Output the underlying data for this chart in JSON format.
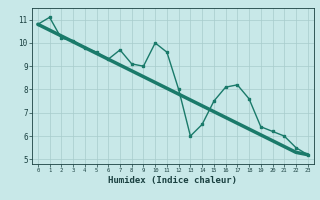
{
  "xlabel": "Humidex (Indice chaleur)",
  "x_values": [
    0,
    1,
    2,
    3,
    4,
    5,
    6,
    7,
    8,
    9,
    10,
    11,
    12,
    13,
    14,
    15,
    16,
    17,
    18,
    19,
    20,
    21,
    22,
    23
  ],
  "y_line1": [
    10.8,
    11.1,
    10.2,
    10.1,
    9.8,
    9.6,
    9.3,
    9.7,
    9.1,
    9.0,
    10.0,
    9.6,
    8.0,
    6.0,
    6.5,
    7.5,
    8.1,
    8.2,
    7.6,
    6.4,
    6.2,
    6.0,
    5.5,
    5.2
  ],
  "y_trend": [
    10.8,
    10.55,
    10.3,
    10.05,
    9.8,
    9.55,
    9.3,
    9.05,
    8.8,
    8.55,
    8.3,
    8.05,
    7.8,
    7.55,
    7.3,
    7.05,
    6.8,
    6.55,
    6.3,
    6.05,
    5.8,
    5.55,
    5.3,
    5.2
  ],
  "ylim": [
    4.8,
    11.5
  ],
  "xlim": [
    -0.5,
    23.5
  ],
  "yticks": [
    5,
    6,
    7,
    8,
    9,
    10,
    11
  ],
  "xticks": [
    0,
    1,
    2,
    3,
    4,
    5,
    6,
    7,
    8,
    9,
    10,
    11,
    12,
    13,
    14,
    15,
    16,
    17,
    18,
    19,
    20,
    21,
    22,
    23
  ],
  "line_color": "#1a7a6a",
  "trend_color": "#1a7a6a",
  "bg_color": "#c8e8e8",
  "grid_color": "#a8cccc",
  "text_color": "#1a4040",
  "axis_bg": "#e8f8f8"
}
